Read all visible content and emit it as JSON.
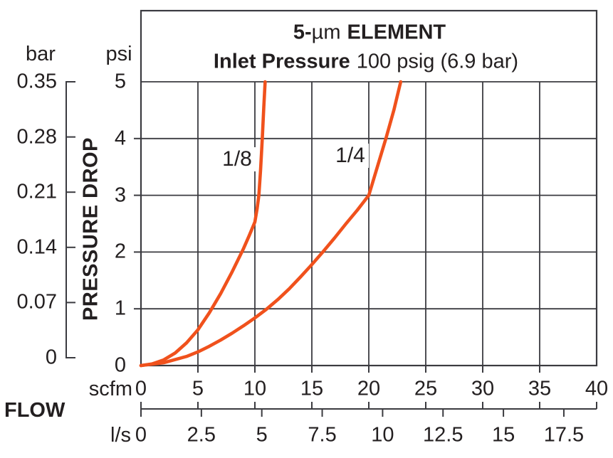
{
  "header": {
    "title_bold_1": "5-",
    "title_mu": "µm",
    "title_bold_2": "ELEMENT",
    "subtitle_bold": "Inlet Pressure",
    "subtitle_normal": "100 psig (6.9 bar)"
  },
  "y_axis": {
    "bar_unit": "bar",
    "psi_unit": "psi",
    "axis_title": "PRESSURE DROP",
    "bar_tick_labels": [
      "0.35",
      "0.28",
      "0.21",
      "0.14",
      "0.07",
      "0"
    ],
    "psi_tick_labels": [
      "5",
      "4",
      "3",
      "2",
      "1",
      "0"
    ]
  },
  "x_axis": {
    "flow_label": "FLOW",
    "scfm_unit": "scfm",
    "ls_unit": "l/s",
    "scfm_tick_labels": [
      "0",
      "5",
      "10",
      "15",
      "20",
      "25",
      "30",
      "35",
      "40"
    ],
    "ls_tick_labels": [
      "0",
      "2.5",
      "5",
      "7.5",
      "10",
      "12.5",
      "15",
      "17.5"
    ]
  },
  "colors": {
    "curve": "#F0511C",
    "grid": "#3B3B40",
    "text": "#231F20",
    "background": "#FFFFFF"
  },
  "chart_data": {
    "type": "line",
    "title": "5-µm ELEMENT",
    "subtitle": "Inlet Pressure 100 psig (6.9 bar)",
    "xlabel": "FLOW",
    "ylabel": "PRESSURE DROP",
    "x_unit_primary": "scfm",
    "x_unit_secondary": "l/s",
    "y_unit_primary": "psi",
    "y_unit_secondary": "bar",
    "xlim_scfm": [
      0,
      40
    ],
    "ylim_psi": [
      0,
      5
    ],
    "x_ticks_scfm": [
      0,
      5,
      10,
      15,
      20,
      25,
      30,
      35,
      40
    ],
    "x_ticks_ls": [
      0,
      2.5,
      5,
      7.5,
      10,
      12.5,
      15,
      17.5
    ],
    "y_ticks_psi": [
      5,
      4,
      3,
      2,
      1,
      0
    ],
    "y_ticks_bar": [
      0.35,
      0.28,
      0.21,
      0.14,
      0.07,
      0
    ],
    "ls_per_scfm": 0.472,
    "grid": true,
    "legend": "inline curve labels",
    "series": [
      {
        "name": "1/8",
        "points_scfm_psi": [
          [
            0,
            0
          ],
          [
            1,
            0.03
          ],
          [
            2,
            0.1
          ],
          [
            3,
            0.22
          ],
          [
            4,
            0.4
          ],
          [
            5,
            0.63
          ],
          [
            6,
            0.93
          ],
          [
            7,
            1.27
          ],
          [
            8,
            1.65
          ],
          [
            9,
            2.06
          ],
          [
            9.5,
            2.29
          ],
          [
            10,
            2.53
          ],
          [
            10.2,
            2.77
          ],
          [
            10.35,
            3.0
          ],
          [
            10.5,
            3.45
          ],
          [
            10.65,
            4.0
          ],
          [
            10.78,
            4.55
          ],
          [
            10.9,
            5.0
          ]
        ]
      },
      {
        "name": "1/4",
        "points_scfm_psi": [
          [
            0,
            0
          ],
          [
            2,
            0.05
          ],
          [
            4,
            0.16
          ],
          [
            5,
            0.24
          ],
          [
            6,
            0.34
          ],
          [
            7,
            0.45
          ],
          [
            8,
            0.57
          ],
          [
            9,
            0.7
          ],
          [
            10,
            0.84
          ],
          [
            11,
            0.99
          ],
          [
            12,
            1.16
          ],
          [
            13,
            1.35
          ],
          [
            14,
            1.56
          ],
          [
            15,
            1.78
          ],
          [
            16,
            2.01
          ],
          [
            17,
            2.25
          ],
          [
            18,
            2.5
          ],
          [
            19,
            2.74
          ],
          [
            20,
            3.0
          ],
          [
            20.75,
            3.5
          ],
          [
            21.5,
            4.0
          ],
          [
            22.2,
            4.5
          ],
          [
            22.8,
            5.0
          ]
        ]
      }
    ]
  }
}
